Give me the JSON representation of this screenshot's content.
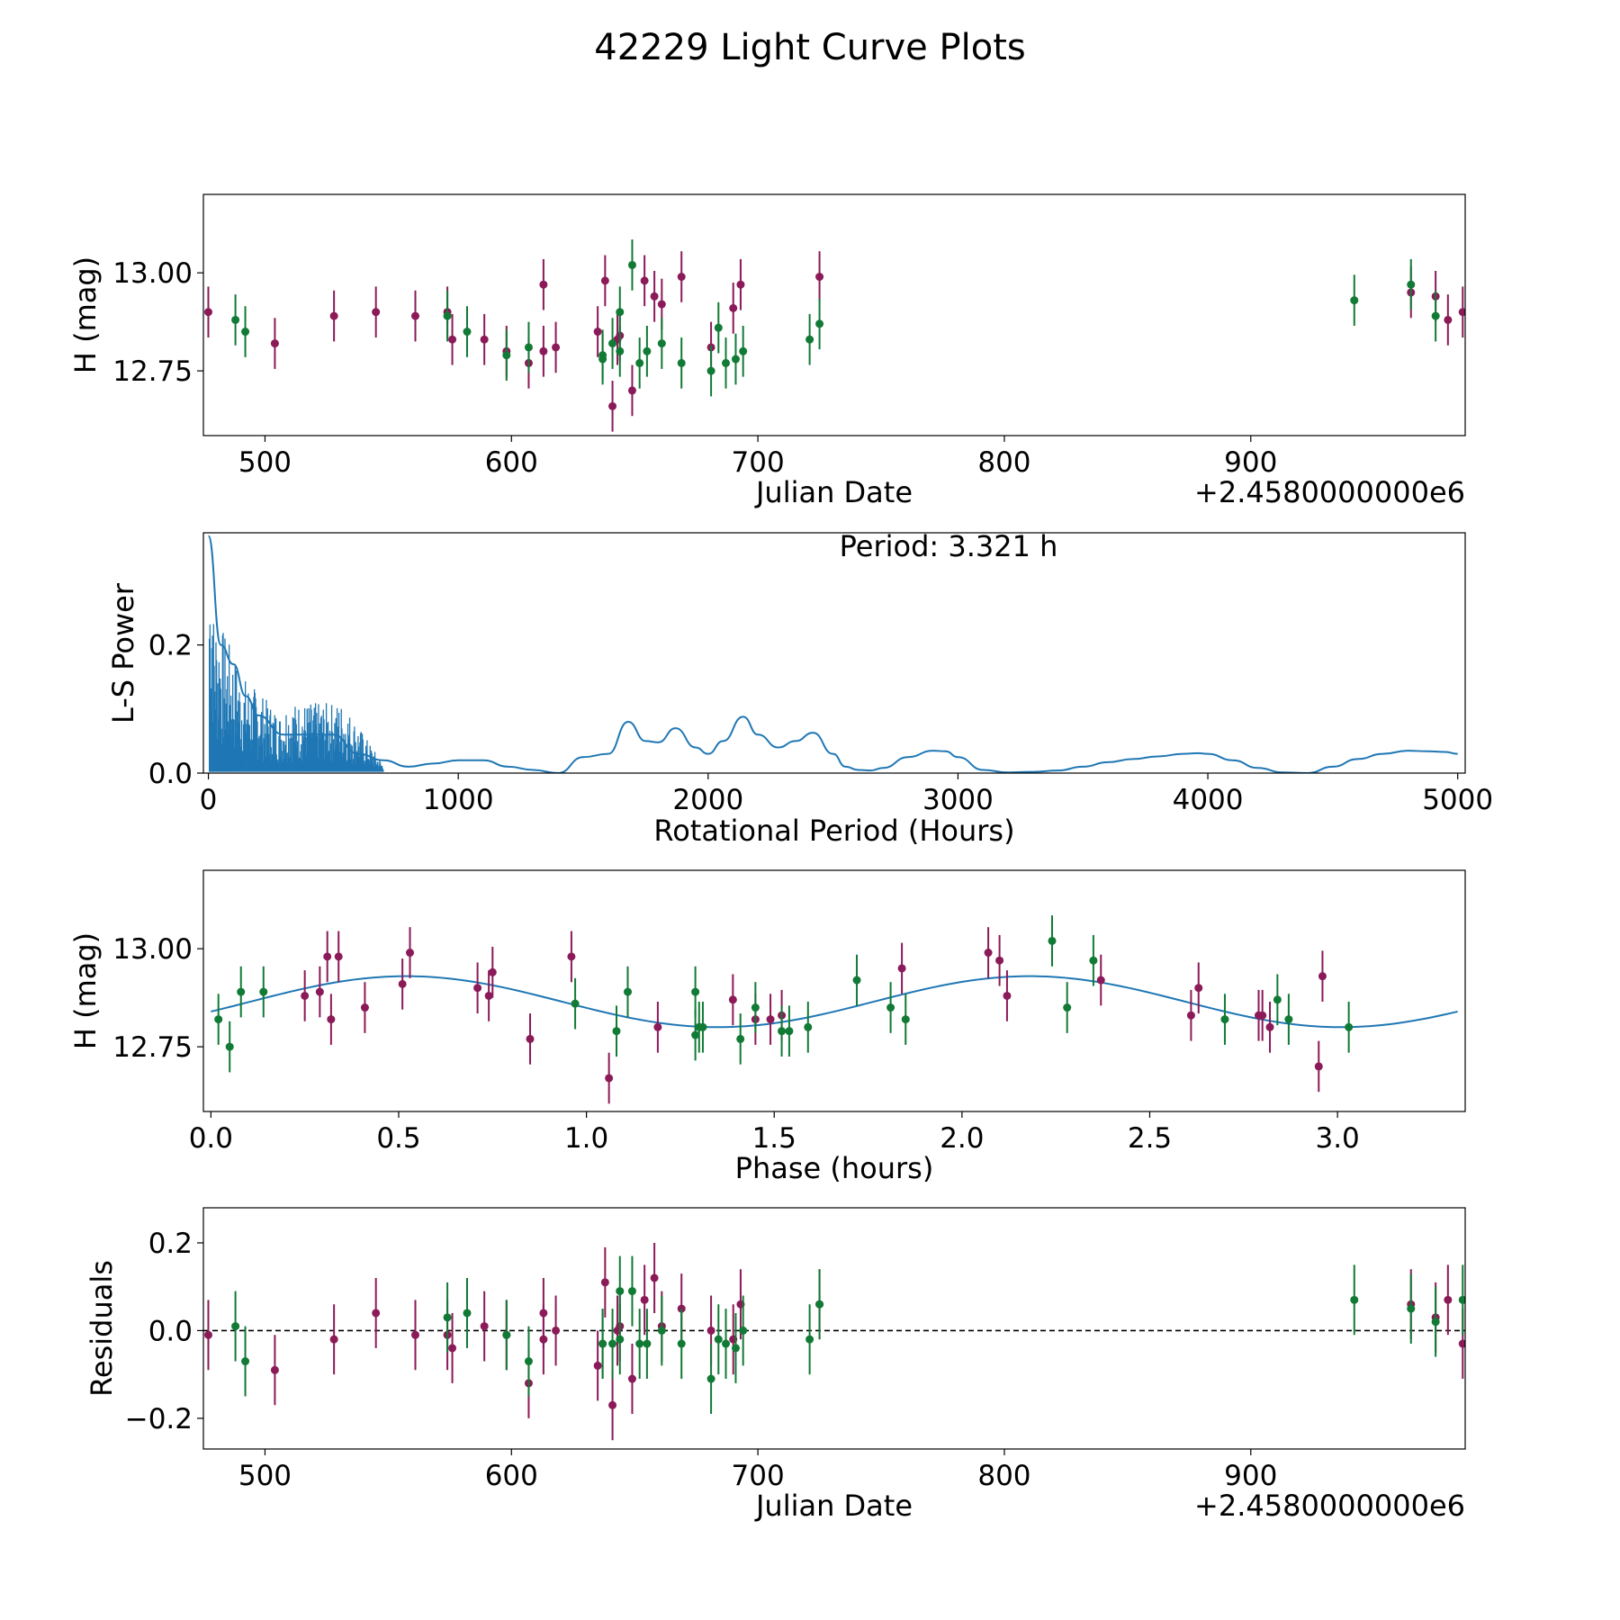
{
  "figure": {
    "title": "42229 Light Curve Plots"
  },
  "colors": {
    "purple": "#8b1a58",
    "green": "#117a35",
    "line": "#1f77b4"
  },
  "chart_data": [
    {
      "type": "scatter",
      "name": "light-curve",
      "xlabel": "Julian Date",
      "ylabel": "H (mag)",
      "offset_label": "+2.4580000000e6",
      "xlim": [
        475,
        987
      ],
      "ylim": [
        12.585,
        13.2
      ],
      "xticks": [
        500,
        600,
        700,
        800,
        900
      ],
      "xtick_labels": [
        "500",
        "600",
        "700",
        "800",
        "900"
      ],
      "yticks": [
        12.75,
        13.0
      ],
      "ytick_labels": [
        "12.75",
        "13.00"
      ],
      "series": [
        {
          "name": "purple",
          "color": "#8b1a58",
          "err": 0.065,
          "points": [
            [
              477,
              12.9
            ],
            [
              504,
              12.82
            ],
            [
              528,
              12.89
            ],
            [
              545,
              12.9
            ],
            [
              561,
              12.89
            ],
            [
              574,
              12.9
            ],
            [
              576,
              12.83
            ],
            [
              589,
              12.83
            ],
            [
              598,
              12.8
            ],
            [
              607,
              12.77
            ],
            [
              613,
              12.8
            ],
            [
              613,
              12.97
            ],
            [
              618,
              12.81
            ],
            [
              635,
              12.85
            ],
            [
              638,
              12.98
            ],
            [
              641,
              12.66
            ],
            [
              643,
              12.83
            ],
            [
              644,
              12.84
            ],
            [
              649,
              12.7
            ],
            [
              654,
              12.98
            ],
            [
              658,
              12.94
            ],
            [
              661,
              12.92
            ],
            [
              669,
              12.99
            ],
            [
              681,
              12.81
            ],
            [
              690,
              12.91
            ],
            [
              693,
              12.97
            ],
            [
              725,
              12.99
            ],
            [
              965,
              12.95
            ],
            [
              975,
              12.94
            ],
            [
              980,
              12.88
            ],
            [
              986,
              12.9
            ]
          ]
        },
        {
          "name": "green",
          "color": "#117a35",
          "err": 0.065,
          "points": [
            [
              488,
              12.88
            ],
            [
              492,
              12.85
            ],
            [
              574,
              12.89
            ],
            [
              582,
              12.85
            ],
            [
              598,
              12.79
            ],
            [
              607,
              12.81
            ],
            [
              637,
              12.79
            ],
            [
              637,
              12.78
            ],
            [
              641,
              12.82
            ],
            [
              644,
              12.9
            ],
            [
              644,
              12.8
            ],
            [
              649,
              13.02
            ],
            [
              652,
              12.77
            ],
            [
              655,
              12.8
            ],
            [
              661,
              12.82
            ],
            [
              669,
              12.77
            ],
            [
              681,
              12.75
            ],
            [
              684,
              12.86
            ],
            [
              687,
              12.77
            ],
            [
              691,
              12.78
            ],
            [
              694,
              12.8
            ],
            [
              721,
              12.83
            ],
            [
              725,
              12.87
            ],
            [
              942,
              12.93
            ],
            [
              965,
              12.97
            ],
            [
              975,
              12.89
            ]
          ]
        }
      ]
    },
    {
      "type": "line",
      "name": "periodogram",
      "xlabel": "Rotational Period (Hours)",
      "ylabel": "L-S Power",
      "annotation": "Period: 3.321 h",
      "xlim": [
        -20,
        5030
      ],
      "ylim": [
        0,
        0.375
      ],
      "xticks": [
        0,
        1000,
        2000,
        3000,
        4000,
        5000
      ],
      "xtick_labels": [
        "0",
        "1000",
        "2000",
        "3000",
        "4000",
        "5000"
      ],
      "yticks": [
        0.0,
        0.2
      ],
      "ytick_labels": [
        "0.0",
        "0.2"
      ],
      "x": [
        0,
        50,
        100,
        150,
        200,
        300,
        400,
        500,
        600,
        700,
        800,
        900,
        1000,
        1100,
        1200,
        1300,
        1400,
        1500,
        1600,
        1680,
        1750,
        1800,
        1870,
        1950,
        2000,
        2060,
        2140,
        2200,
        2280,
        2350,
        2420,
        2500,
        2550,
        2600,
        2650,
        2700,
        2800,
        2900,
        2950,
        3000,
        3100,
        3200,
        3300,
        3400,
        3500,
        3600,
        3700,
        3800,
        3900,
        3960,
        4000,
        4100,
        4200,
        4300,
        4400,
        4500,
        4600,
        4700,
        4800,
        4880,
        4950,
        5000
      ],
      "values": [
        0.37,
        0.2,
        0.17,
        0.12,
        0.09,
        0.06,
        0.06,
        0.06,
        0.03,
        0.02,
        0.01,
        0.015,
        0.02,
        0.02,
        0.01,
        0.005,
        0.0,
        0.025,
        0.03,
        0.08,
        0.05,
        0.048,
        0.07,
        0.04,
        0.03,
        0.05,
        0.088,
        0.06,
        0.04,
        0.05,
        0.063,
        0.03,
        0.01,
        0.005,
        0.004,
        0.008,
        0.025,
        0.035,
        0.034,
        0.025,
        0.005,
        0.001,
        0.002,
        0.004,
        0.01,
        0.017,
        0.022,
        0.026,
        0.03,
        0.031,
        0.03,
        0.02,
        0.008,
        0.001,
        0.0,
        0.01,
        0.022,
        0.03,
        0.035,
        0.034,
        0.033,
        0.03
      ]
    },
    {
      "type": "scatter",
      "name": "phase-folded",
      "xlabel": "Phase (hours)",
      "ylabel": "H (mag)",
      "xlim": [
        -0.02,
        3.34
      ],
      "ylim": [
        12.585,
        13.2
      ],
      "xticks": [
        0,
        0.5,
        1.0,
        1.5,
        2.0,
        2.5,
        3.0
      ],
      "xtick_labels": [
        "0.0",
        "0.5",
        "1.0",
        "1.5",
        "2.0",
        "2.5",
        "3.0"
      ],
      "yticks": [
        12.75,
        13.0
      ],
      "ytick_labels": [
        "12.75",
        "13.00"
      ],
      "fit": {
        "mean": 12.865,
        "amplitude": 0.065,
        "period": 1.66,
        "peak": 0.52,
        "x_range": [
          0,
          3.32
        ]
      },
      "series": [
        {
          "name": "purple",
          "color": "#8b1a58",
          "err": 0.065,
          "points": [
            [
              0.25,
              12.88
            ],
            [
              0.29,
              12.89
            ],
            [
              0.31,
              12.98
            ],
            [
              0.32,
              12.82
            ],
            [
              0.34,
              12.98
            ],
            [
              0.41,
              12.85
            ],
            [
              0.51,
              12.91
            ],
            [
              0.53,
              12.99
            ],
            [
              0.71,
              12.9
            ],
            [
              0.74,
              12.88
            ],
            [
              0.75,
              12.94
            ],
            [
              0.85,
              12.77
            ],
            [
              0.96,
              12.98
            ],
            [
              1.06,
              12.67
            ],
            [
              1.19,
              12.8
            ],
            [
              1.39,
              12.87
            ],
            [
              1.45,
              12.82
            ],
            [
              1.49,
              12.82
            ],
            [
              1.52,
              12.83
            ],
            [
              1.84,
              12.95
            ],
            [
              2.07,
              12.99
            ],
            [
              2.1,
              12.97
            ],
            [
              2.12,
              12.88
            ],
            [
              2.37,
              12.92
            ],
            [
              2.61,
              12.83
            ],
            [
              2.63,
              12.9
            ],
            [
              2.79,
              12.83
            ],
            [
              2.8,
              12.83
            ],
            [
              2.82,
              12.8
            ],
            [
              2.95,
              12.7
            ],
            [
              2.96,
              12.93
            ]
          ]
        },
        {
          "name": "green",
          "color": "#117a35",
          "err": 0.065,
          "points": [
            [
              0.02,
              12.82
            ],
            [
              0.05,
              12.75
            ],
            [
              0.08,
              12.89
            ],
            [
              0.14,
              12.89
            ],
            [
              0.97,
              12.86
            ],
            [
              1.08,
              12.79
            ],
            [
              1.11,
              12.89
            ],
            [
              1.29,
              12.89
            ],
            [
              1.29,
              12.78
            ],
            [
              1.3,
              12.8
            ],
            [
              1.31,
              12.8
            ],
            [
              1.41,
              12.77
            ],
            [
              1.45,
              12.85
            ],
            [
              1.52,
              12.79
            ],
            [
              1.54,
              12.79
            ],
            [
              1.59,
              12.8
            ],
            [
              1.72,
              12.92
            ],
            [
              1.81,
              12.85
            ],
            [
              1.85,
              12.82
            ],
            [
              2.24,
              13.02
            ],
            [
              2.28,
              12.85
            ],
            [
              2.35,
              12.97
            ],
            [
              2.7,
              12.82
            ],
            [
              2.84,
              12.87
            ],
            [
              2.87,
              12.82
            ],
            [
              3.03,
              12.8
            ]
          ]
        }
      ]
    },
    {
      "type": "scatter",
      "name": "residuals",
      "xlabel": "Julian Date",
      "ylabel": "Residuals",
      "offset_label": "+2.4580000000e6",
      "xlim": [
        475,
        987
      ],
      "ylim": [
        -0.27,
        0.28
      ],
      "xticks": [
        500,
        600,
        700,
        800,
        900
      ],
      "xtick_labels": [
        "500",
        "600",
        "700",
        "800",
        "900"
      ],
      "yticks": [
        -0.2,
        0.0,
        0.2
      ],
      "ytick_labels": [
        "−0.2",
        "0.0",
        "0.2"
      ],
      "reference_line": 0.0,
      "series": [
        {
          "name": "purple",
          "color": "#8b1a58",
          "err": 0.08,
          "points": [
            [
              477,
              -0.01
            ],
            [
              504,
              -0.09
            ],
            [
              528,
              -0.02
            ],
            [
              545,
              0.04
            ],
            [
              561,
              -0.01
            ],
            [
              574,
              -0.01
            ],
            [
              576,
              -0.04
            ],
            [
              589,
              0.01
            ],
            [
              598,
              -0.01
            ],
            [
              607,
              -0.12
            ],
            [
              613,
              -0.02
            ],
            [
              613,
              0.04
            ],
            [
              618,
              0.0
            ],
            [
              635,
              -0.08
            ],
            [
              638,
              0.11
            ],
            [
              641,
              -0.17
            ],
            [
              643,
              0.0
            ],
            [
              644,
              0.01
            ],
            [
              649,
              -0.11
            ],
            [
              654,
              0.07
            ],
            [
              658,
              0.12
            ],
            [
              661,
              0.01
            ],
            [
              669,
              0.05
            ],
            [
              681,
              0.0
            ],
            [
              690,
              -0.02
            ],
            [
              693,
              0.06
            ],
            [
              725,
              0.06
            ],
            [
              965,
              0.06
            ],
            [
              975,
              0.03
            ],
            [
              980,
              0.07
            ],
            [
              986,
              -0.03
            ]
          ]
        },
        {
          "name": "green",
          "color": "#117a35",
          "err": 0.08,
          "points": [
            [
              488,
              0.01
            ],
            [
              492,
              -0.07
            ],
            [
              574,
              0.03
            ],
            [
              582,
              0.04
            ],
            [
              598,
              -0.01
            ],
            [
              607,
              -0.07
            ],
            [
              637,
              -0.03
            ],
            [
              637,
              -0.03
            ],
            [
              641,
              -0.03
            ],
            [
              644,
              0.09
            ],
            [
              644,
              -0.02
            ],
            [
              649,
              0.09
            ],
            [
              652,
              -0.03
            ],
            [
              655,
              -0.03
            ],
            [
              661,
              0.0
            ],
            [
              669,
              -0.03
            ],
            [
              681,
              -0.11
            ],
            [
              684,
              -0.02
            ],
            [
              687,
              -0.03
            ],
            [
              691,
              -0.04
            ],
            [
              694,
              0.0
            ],
            [
              721,
              -0.02
            ],
            [
              725,
              0.06
            ],
            [
              942,
              0.07
            ],
            [
              965,
              0.05
            ],
            [
              975,
              0.02
            ],
            [
              986,
              0.07
            ]
          ]
        }
      ]
    }
  ]
}
